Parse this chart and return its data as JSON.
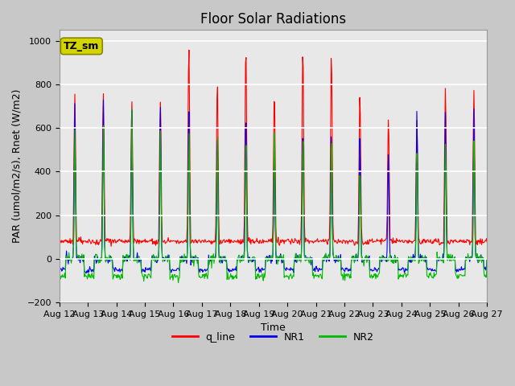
{
  "title": "Floor Solar Radiations",
  "xlabel": "Time",
  "ylabel": "PAR (umol/m2/s), Rnet (W/m2)",
  "ylim": [
    -200,
    1050
  ],
  "yticks": [
    -200,
    0,
    200,
    400,
    600,
    800,
    1000
  ],
  "xtick_labels": [
    "Aug 12",
    "Aug 13",
    "Aug 14",
    "Aug 15",
    "Aug 16",
    "Aug 17",
    "Aug 18",
    "Aug 19",
    "Aug 20",
    "Aug 21",
    "Aug 22",
    "Aug 23",
    "Aug 24",
    "Aug 25",
    "Aug 26",
    "Aug 27"
  ],
  "legend_labels": [
    "q_line",
    "NR1",
    "NR2"
  ],
  "legend_colors": [
    "#ff0000",
    "#0000ee",
    "#00bb00"
  ],
  "bg_color": "#c8c8c8",
  "plot_bg_color": "#e8e8e8",
  "annotation_text": "TZ_sm",
  "annotation_bg": "#d4d400",
  "annotation_edge": "#888800",
  "title_fontsize": 12,
  "axis_label_fontsize": 9,
  "tick_label_fontsize": 8
}
